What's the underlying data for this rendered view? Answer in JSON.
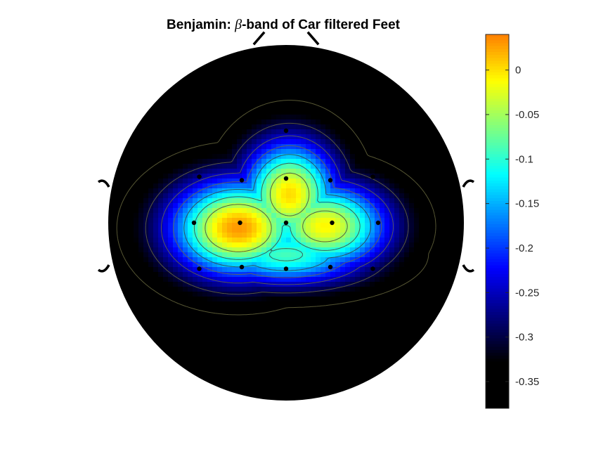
{
  "chart_data": {
    "type": "heatmap",
    "title": {
      "prefix": "Benjamin: ",
      "symbol": "β",
      "suffix": "-band of Car filtered Feet"
    },
    "colormap": "jet",
    "clim": [
      -0.38,
      0.04
    ],
    "colorbar": {
      "placement": "right",
      "ticks": [
        0,
        -0.05,
        -0.1,
        -0.15,
        -0.2,
        -0.25,
        -0.3,
        -0.35
      ],
      "tick_labels": [
        "0",
        "-0.05",
        "-0.1",
        "-0.15",
        "-0.2",
        "-0.25",
        "-0.3",
        "-0.35"
      ]
    },
    "contour_levels": [
      -0.05,
      -0.1,
      -0.15,
      -0.2,
      -0.25,
      -0.3,
      -0.35
    ],
    "peak_value": 0.03,
    "background_value": -0.37,
    "electrodes": [
      {
        "x": 0.0,
        "y": 0.52
      },
      {
        "x": -0.49,
        "y": 0.26
      },
      {
        "x": -0.25,
        "y": 0.24
      },
      {
        "x": 0.0,
        "y": 0.25
      },
      {
        "x": 0.25,
        "y": 0.24
      },
      {
        "x": 0.49,
        "y": 0.26
      },
      {
        "x": -0.52,
        "y": 0.0
      },
      {
        "x": -0.26,
        "y": 0.0
      },
      {
        "x": 0.0,
        "y": 0.0
      },
      {
        "x": 0.26,
        "y": 0.0
      },
      {
        "x": 0.52,
        "y": 0.0
      },
      {
        "x": -0.49,
        "y": -0.26
      },
      {
        "x": -0.25,
        "y": -0.25
      },
      {
        "x": 0.0,
        "y": -0.26
      },
      {
        "x": 0.25,
        "y": -0.25
      },
      {
        "x": 0.49,
        "y": -0.26
      }
    ]
  }
}
